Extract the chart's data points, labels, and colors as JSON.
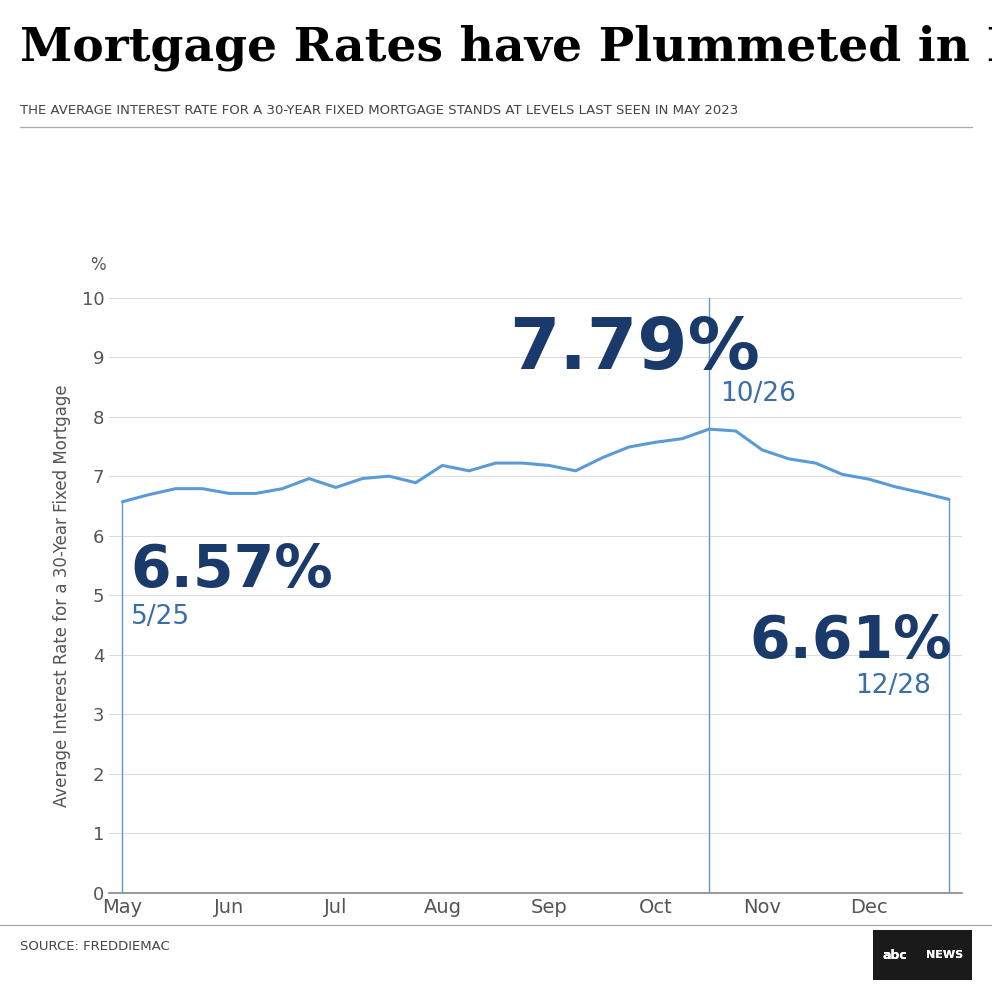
{
  "title": "Mortgage Rates have Plummeted in Recent Months",
  "subtitle": "THE AVERAGE INTEREST RATE FOR A 30-YEAR FIXED MORTGAGE STANDS AT LEVELS LAST SEEN IN MAY 2023",
  "ylabel": "Average Interest Rate for a 30-Year Fixed Mortgage",
  "ylabel_unit": "%",
  "ylim": [
    0,
    10
  ],
  "yticks": [
    0,
    1,
    2,
    3,
    4,
    5,
    6,
    7,
    8,
    9,
    10
  ],
  "source": "SOURCE: FREDDIEMAC",
  "line_color": "#5b9bd5",
  "annotation_color": "#1a3a6b",
  "annotation_light_color": "#3a6ea8",
  "vline_color": "#5b9bd5",
  "data_x": [
    0,
    1,
    2,
    3,
    4,
    5,
    6,
    7,
    8,
    9,
    10,
    11,
    12,
    13,
    14,
    15,
    16,
    17,
    18,
    19,
    20,
    21,
    22,
    23,
    24,
    25,
    26,
    27,
    28,
    29,
    30,
    31
  ],
  "data_y": [
    6.57,
    6.69,
    6.79,
    6.79,
    6.71,
    6.71,
    6.79,
    6.96,
    6.81,
    6.96,
    7.0,
    6.89,
    7.18,
    7.09,
    7.22,
    7.22,
    7.18,
    7.09,
    7.31,
    7.49,
    7.57,
    7.63,
    7.79,
    7.76,
    7.44,
    7.29,
    7.22,
    7.03,
    6.95,
    6.82,
    6.72,
    6.61
  ],
  "peak_idx": 22,
  "peak_label": "7.79%",
  "peak_date": "10/26",
  "start_label": "6.57%",
  "start_date": "5/25",
  "end_label": "6.61%",
  "end_date": "12/28",
  "x_tick_positions": [
    0,
    4,
    8,
    12,
    16,
    20,
    24,
    28
  ],
  "x_tick_labels": [
    "May",
    "Jun",
    "Jul",
    "Aug",
    "Sep",
    "Oct",
    "Nov",
    "Dec"
  ]
}
